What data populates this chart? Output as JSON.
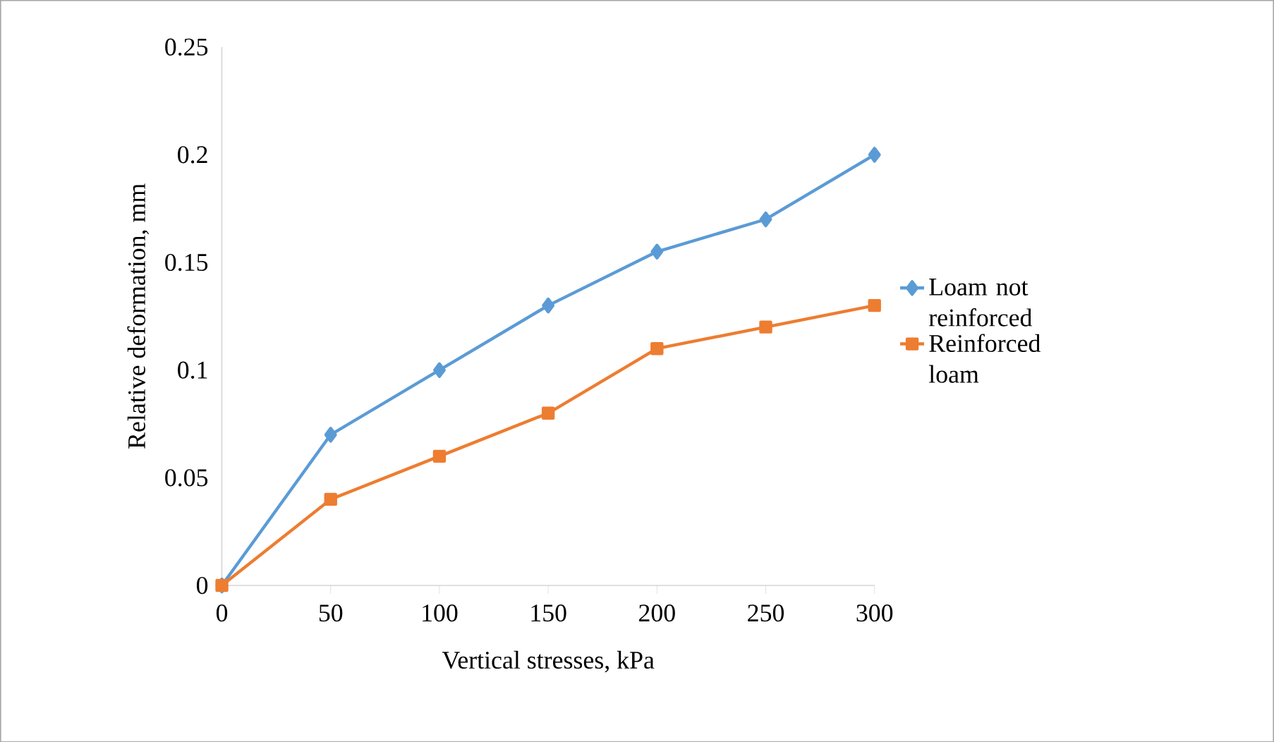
{
  "chart_data": {
    "type": "line",
    "xlabel": "Vertical stresses, kPa",
    "ylabel": "Relative deformation, mm",
    "x": [
      0,
      50,
      100,
      150,
      200,
      250,
      300
    ],
    "series": [
      {
        "name": "Loam not reinforced",
        "color": "#5b9bd5",
        "marker": "diamond",
        "values": [
          0,
          0.07,
          0.1,
          0.13,
          0.155,
          0.17,
          0.2
        ]
      },
      {
        "name": "Reinforced loam",
        "color": "#ed7d31",
        "marker": "square",
        "values": [
          0,
          0.04,
          0.06,
          0.08,
          0.11,
          0.12,
          0.13
        ]
      }
    ],
    "xlim": [
      0,
      300
    ],
    "xticks": [
      0,
      50,
      100,
      150,
      200,
      250,
      300
    ],
    "ylim": [
      0,
      0.25
    ],
    "yticks": [
      0,
      0.05,
      0.1,
      0.15,
      0.2,
      0.25
    ],
    "grid": false,
    "legend": "right",
    "line_style": "solid"
  }
}
